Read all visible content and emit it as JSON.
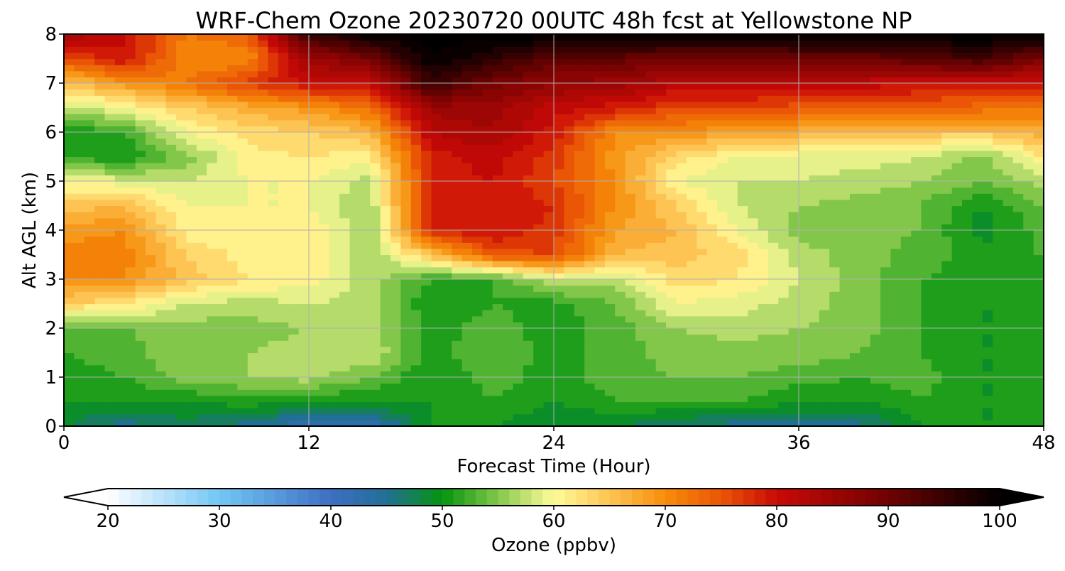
{
  "chart_data": {
    "type": "heatmap",
    "title": "WRF-Chem Ozone  20230720 00UTC 48h fcst at Yellowstone NP",
    "xlabel": "Forecast Time (Hour)",
    "ylabel": "Alt AGL (km)",
    "xlim": [
      0,
      48
    ],
    "ylim": [
      0,
      8
    ],
    "x_ticks": [
      0,
      12,
      24,
      36,
      48
    ],
    "y_ticks": [
      0,
      1,
      2,
      3,
      4,
      5,
      6,
      7,
      8
    ],
    "grid": true,
    "x": [
      0,
      3,
      6,
      9,
      12,
      15,
      18,
      21,
      24,
      27,
      30,
      33,
      36,
      39,
      42,
      45,
      48
    ],
    "y": [
      0,
      0.5,
      1,
      1.5,
      2,
      2.5,
      3,
      3.5,
      4,
      4.5,
      5,
      5.5,
      6,
      6.5,
      7,
      7.5,
      8
    ],
    "z": [
      [
        48,
        45,
        47,
        45,
        42,
        42,
        50,
        50,
        48,
        48,
        46,
        45,
        45,
        45,
        50,
        50,
        50
      ],
      [
        50,
        50,
        50,
        51,
        50,
        50,
        50,
        52,
        50,
        52,
        52,
        52,
        50,
        50,
        52,
        50,
        50
      ],
      [
        51,
        52,
        55,
        56,
        57,
        54,
        50,
        53,
        51,
        53,
        54,
        54,
        53,
        52,
        53,
        50,
        50
      ],
      [
        52,
        53,
        56,
        56,
        57,
        58,
        51,
        54,
        51,
        53,
        55,
        55,
        55,
        54,
        52,
        50,
        50
      ],
      [
        53,
        54,
        55,
        55,
        56,
        57,
        51,
        53,
        51,
        53,
        56,
        57,
        56,
        55,
        52,
        50,
        50
      ],
      [
        64,
        62,
        58,
        57,
        58,
        57,
        50,
        52,
        51,
        54,
        60,
        59,
        57,
        55,
        52,
        50,
        50
      ],
      [
        70,
        70,
        65,
        62,
        61,
        57,
        52,
        52,
        58,
        57,
        63,
        62,
        58,
        55,
        52,
        51,
        50
      ],
      [
        71,
        71,
        64,
        61,
        62,
        56,
        65,
        75,
        76,
        66,
        65,
        63,
        57,
        55,
        53,
        51,
        52
      ],
      [
        69,
        70,
        61,
        60,
        62,
        56,
        78,
        80,
        77,
        68,
        66,
        60,
        55,
        55,
        54,
        49,
        53
      ],
      [
        65,
        66,
        60,
        60,
        60,
        56,
        80,
        80,
        78,
        70,
        64,
        58,
        56,
        55,
        54,
        50,
        54
      ],
      [
        60,
        59,
        58,
        60,
        60,
        57,
        79,
        80,
        76,
        70,
        60,
        58,
        58,
        57,
        56,
        54,
        57
      ],
      [
        52,
        50,
        55,
        61,
        62,
        61,
        79,
        81,
        77,
        69,
        63,
        60,
        59,
        59,
        58,
        55,
        62
      ],
      [
        50,
        52,
        60,
        63,
        64,
        66,
        82,
        84,
        79,
        70,
        70,
        68,
        67,
        66,
        65,
        65,
        67
      ],
      [
        57,
        60,
        64,
        67,
        69,
        73,
        85,
        85,
        81,
        79,
        76,
        76,
        75,
        75,
        74,
        73,
        72
      ],
      [
        65,
        69,
        72,
        77,
        80,
        81,
        95,
        89,
        86,
        85,
        82,
        82,
        81,
        81,
        80,
        80,
        80
      ],
      [
        75,
        80,
        70,
        70,
        85,
        89,
        100,
        96,
        91,
        91,
        89,
        89,
        90,
        90,
        92,
        94,
        88
      ],
      [
        84,
        80,
        72,
        74,
        95,
        100,
        101,
        101,
        101,
        101,
        101,
        101,
        101,
        101,
        101,
        101,
        101
      ]
    ],
    "colorbar": {
      "label": "Ozone  (ppbv)",
      "min": 20,
      "max": 100,
      "ticks": [
        20,
        30,
        40,
        50,
        60,
        70,
        80,
        90,
        100
      ],
      "extend": "both",
      "colormap": [
        [
          20,
          "#ffffff"
        ],
        [
          30,
          "#73c6f4"
        ],
        [
          40,
          "#3e6fc3"
        ],
        [
          45,
          "#226f95"
        ],
        [
          50,
          "#05940e"
        ],
        [
          55,
          "#83c74a"
        ],
        [
          60,
          "#fffc9a"
        ],
        [
          65,
          "#fdc453"
        ],
        [
          70,
          "#f78d0a"
        ],
        [
          75,
          "#ea5506"
        ],
        [
          80,
          "#c90a06"
        ],
        [
          90,
          "#6f0202"
        ],
        [
          100,
          "#000000"
        ]
      ]
    }
  }
}
